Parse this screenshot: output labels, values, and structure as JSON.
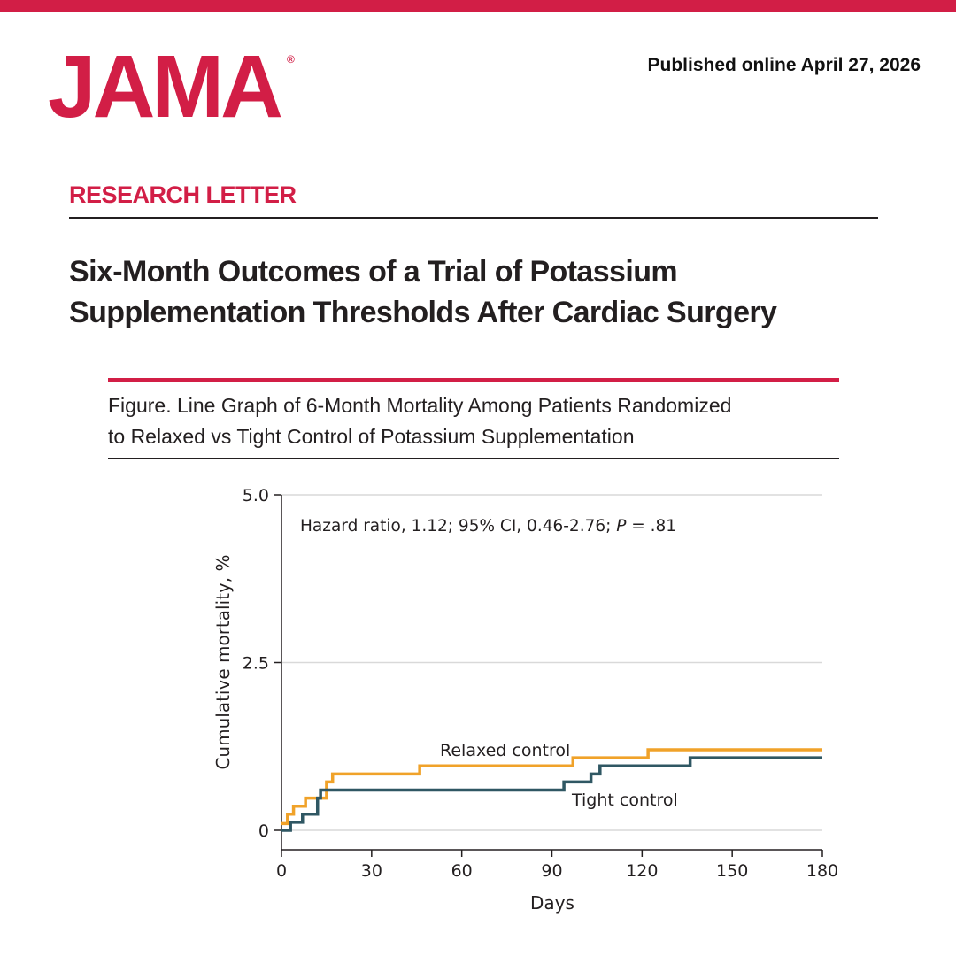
{
  "header": {
    "logo": "JAMA",
    "logo_mark": "®",
    "published": "Published online April 27, 2026"
  },
  "article": {
    "section": "RESEARCH LETTER",
    "title_line1": "Six-Month Outcomes of a Trial of Potassium",
    "title_line2": "Supplementation Thresholds After Cardiac Surgery"
  },
  "figure": {
    "title_line1": "Figure. Line Graph of 6-Month Mortality Among Patients Randomized",
    "title_line2": "to Relaxed vs Tight Control of Potassium Supplementation"
  },
  "colors": {
    "brand": "#d21e46",
    "relaxed": "#f0a229",
    "tight": "#2f5763",
    "grid": "#d9d9d9"
  },
  "chart_data": {
    "type": "line",
    "step": true,
    "xlabel": "Days",
    "ylabel": "Cumulative mortality, %",
    "xlim": [
      0,
      180
    ],
    "ylim": [
      0,
      5.0
    ],
    "x_ticks": [
      0,
      30,
      60,
      90,
      120,
      150,
      180
    ],
    "y_ticks": [
      0,
      2.5,
      5.0
    ],
    "y_tick_labels": [
      "0",
      "2.5",
      "5.0"
    ],
    "grid": "horizontal",
    "annotation_prefix": "Hazard ratio, 1.12; 95% CI, 0.46-2.76; ",
    "annotation_p": "P",
    "annotation_suffix": " = .81",
    "series": [
      {
        "name": "Relaxed control",
        "color": "#f0a229",
        "x": [
          0,
          2,
          4,
          8,
          13,
          15,
          17,
          46,
          97,
          122,
          180
        ],
        "y": [
          0.1,
          0.24,
          0.36,
          0.48,
          0.48,
          0.72,
          0.84,
          0.96,
          1.08,
          1.2,
          1.2
        ]
      },
      {
        "name": "Tight control",
        "color": "#2f5763",
        "x": [
          0,
          3,
          7,
          12,
          13,
          94,
          103,
          106,
          136,
          180
        ],
        "y": [
          0,
          0.12,
          0.24,
          0.48,
          0.6,
          0.72,
          0.84,
          0.96,
          1.08,
          1.08
        ]
      }
    ]
  }
}
